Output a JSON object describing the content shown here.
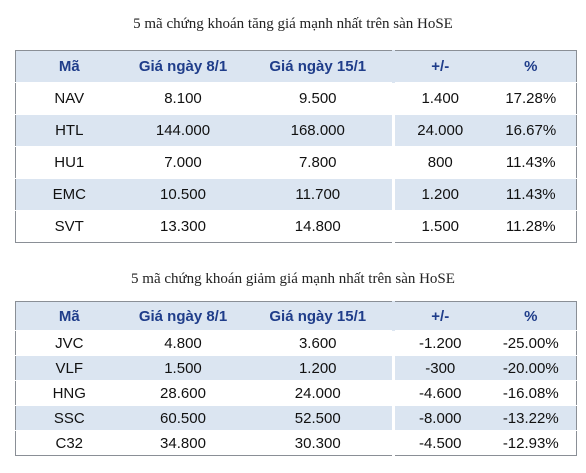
{
  "gainers": {
    "title": "5 mã chứng khoán tăng giá mạnh nhất trên sàn HoSE",
    "headers": [
      "Mã",
      "Giá ngày 8/1",
      "Giá ngày 15/1",
      "+/-",
      "%"
    ],
    "rows": [
      {
        "ma": "NAV",
        "p1": "8.100",
        "p2": "9.500",
        "chg": "1.400",
        "pct": "17.28%"
      },
      {
        "ma": "HTL",
        "p1": "144.000",
        "p2": "168.000",
        "chg": "24.000",
        "pct": "16.67%"
      },
      {
        "ma": "HU1",
        "p1": "7.000",
        "p2": "7.800",
        "chg": "800",
        "pct": "11.43%"
      },
      {
        "ma": "EMC",
        "p1": "10.500",
        "p2": "11.700",
        "chg": "1.200",
        "pct": "11.43%"
      },
      {
        "ma": "SVT",
        "p1": "13.300",
        "p2": "14.800",
        "chg": "1.500",
        "pct": "11.28%"
      }
    ]
  },
  "losers": {
    "title": "5 mã chứng khoán giảm giá mạnh nhất trên sàn HoSE",
    "headers": [
      "Mã",
      "Giá ngày 8/1",
      "Giá ngày 15/1",
      "+/-",
      "%"
    ],
    "rows": [
      {
        "ma": "JVC",
        "p1": "4.800",
        "p2": "3.600",
        "chg": "-1.200",
        "pct": "-25.00%"
      },
      {
        "ma": "VLF",
        "p1": "1.500",
        "p2": "1.200",
        "chg": "-300",
        "pct": "-20.00%"
      },
      {
        "ma": "HNG",
        "p1": "28.600",
        "p2": "24.000",
        "chg": "-4.600",
        "pct": "-16.08%"
      },
      {
        "ma": "SSC",
        "p1": "60.500",
        "p2": "52.500",
        "chg": "-8.000",
        "pct": "-13.22%"
      },
      {
        "ma": "C32",
        "p1": "34.800",
        "p2": "30.300",
        "chg": "-4.500",
        "pct": "-12.93%"
      }
    ]
  },
  "colors": {
    "header_bg": "#dbe5f1",
    "header_text": "#1f3d8a",
    "up": "#1e9b3b",
    "down": "#e01b24"
  }
}
